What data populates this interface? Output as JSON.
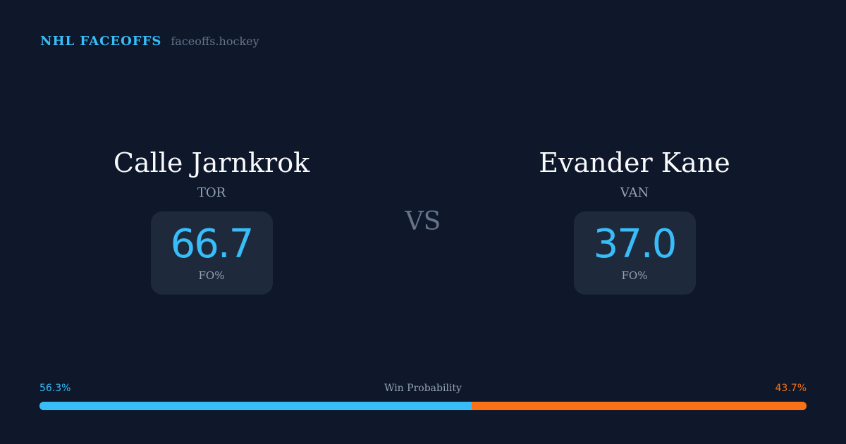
{
  "header": {
    "brand": "NHL FACEOFFS",
    "url": "faceoffs.hockey"
  },
  "players": [
    {
      "name": "Calle Jarnkrok",
      "team": "TOR",
      "fo_pct": "66.7",
      "fo_label": "FO%"
    },
    {
      "name": "Evander Kane",
      "team": "VAN",
      "fo_pct": "37.0",
      "fo_label": "FO%"
    }
  ],
  "vs": "VS",
  "win_probability": {
    "label": "Win Probability",
    "left": "56.3%",
    "right": "43.7%",
    "left_value": 56.3,
    "right_value": 43.7
  },
  "colors": {
    "background": "#0f172a",
    "card": "#1e293b",
    "accent_blue": "#38bdf8",
    "accent_orange": "#f97316"
  }
}
